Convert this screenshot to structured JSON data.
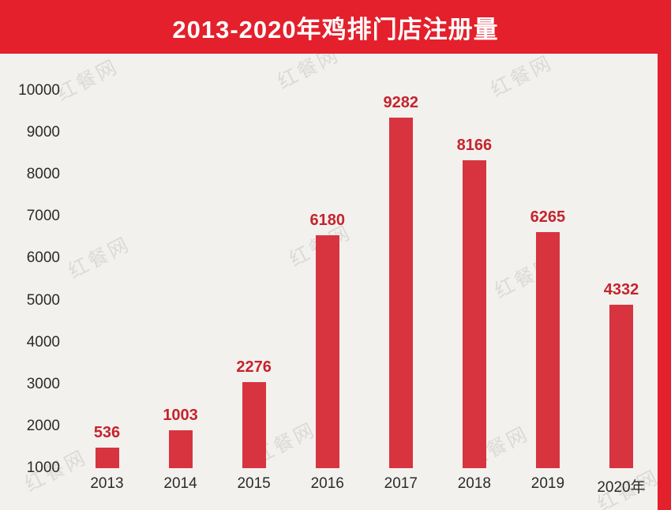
{
  "page": {
    "background": "#f2f1ee",
    "accent_red": "#e3202b"
  },
  "header": {
    "title": "2013-2020年鸡排门店注册量"
  },
  "watermark": {
    "text": "红餐网"
  },
  "chart_data": {
    "type": "bar",
    "title": "2013-2020年鸡排门店注册量",
    "categories": [
      "2013",
      "2014",
      "2015",
      "2016",
      "2017",
      "2018",
      "2019",
      "2020年"
    ],
    "values": [
      536,
      1003,
      2276,
      6180,
      9282,
      8166,
      6265,
      4332
    ],
    "xlabel": "",
    "ylabel": "",
    "ylim": [
      0,
      10000
    ],
    "yticks": [
      1000,
      2000,
      3000,
      4000,
      5000,
      6000,
      7000,
      8000,
      9000,
      10000
    ],
    "grid": false,
    "legend": "none",
    "bar_color": "#d73440",
    "value_label_color": "#c5242d",
    "axis_text_color": "#2b2b2b"
  }
}
